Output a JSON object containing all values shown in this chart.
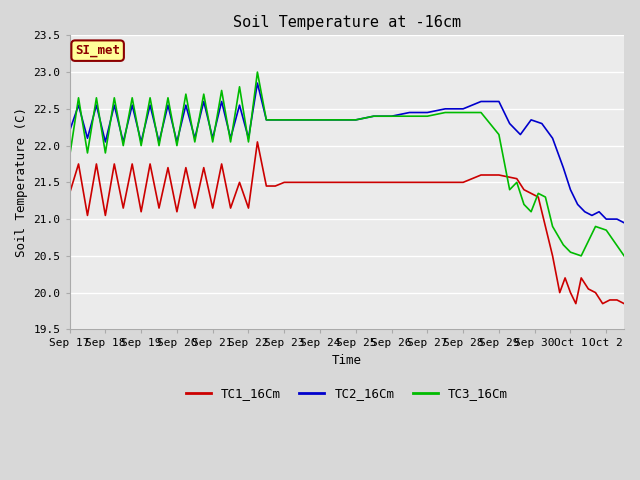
{
  "title": "Soil Temperature at -16cm",
  "xlabel": "Time",
  "ylabel": "Soil Temperature (C)",
  "ylim": [
    19.5,
    23.5
  ],
  "fig_bg_color": "#d8d8d8",
  "plot_bg_color": "#ebebeb",
  "annotation_text": "SI_met",
  "annotation_bg": "#ffff99",
  "annotation_border": "#8b0000",
  "series": {
    "TC1_16Cm": {
      "color": "#cc0000",
      "linewidth": 1.2
    },
    "TC2_16Cm": {
      "color": "#0000cc",
      "linewidth": 1.2
    },
    "TC3_16Cm": {
      "color": "#00bb00",
      "linewidth": 1.2
    }
  },
  "xtick_labels": [
    "Sep 17",
    "Sep 18",
    "Sep 19",
    "Sep 20",
    "Sep 21",
    "Sep 22",
    "Sep 23",
    "Sep 24",
    "Sep 25",
    "Sep 26",
    "Sep 27",
    "Sep 28",
    "Sep 29",
    "Sep 30",
    "Oct 1",
    "Oct 2"
  ],
  "ytick_labels": [
    "19.5",
    "20.0",
    "20.5",
    "21.0",
    "21.5",
    "22.0",
    "22.5",
    "23.0",
    "23.5"
  ],
  "grid_color": "#ffffff",
  "title_fontsize": 11,
  "axis_fontsize": 9,
  "tick_fontsize": 8,
  "legend_fontsize": 9,
  "tc1": {
    "x": [
      0.0,
      0.25,
      0.5,
      0.75,
      1.0,
      1.25,
      1.5,
      1.75,
      2.0,
      2.25,
      2.5,
      2.75,
      3.0,
      3.25,
      3.5,
      3.75,
      4.0,
      4.25,
      4.5,
      4.75,
      5.0,
      5.25,
      5.5,
      5.75,
      6.0,
      6.25,
      6.5,
      6.75,
      7.0,
      7.25,
      7.5,
      7.75,
      8.0,
      8.5,
      9.0,
      9.5,
      10.0,
      10.5,
      11.0,
      11.5,
      12.0,
      12.5,
      12.7,
      12.9,
      13.1,
      13.3,
      13.5,
      13.7,
      13.85,
      14.0,
      14.15,
      14.3,
      14.5,
      14.7,
      14.9,
      15.1,
      15.3,
      15.5
    ],
    "y": [
      21.35,
      21.75,
      21.05,
      21.75,
      21.05,
      21.75,
      21.15,
      21.75,
      21.1,
      21.75,
      21.15,
      21.7,
      21.1,
      21.7,
      21.15,
      21.7,
      21.15,
      21.75,
      21.15,
      21.5,
      21.15,
      22.05,
      21.45,
      21.45,
      21.5,
      21.5,
      21.5,
      21.5,
      21.5,
      21.5,
      21.5,
      21.5,
      21.5,
      21.5,
      21.5,
      21.5,
      21.5,
      21.5,
      21.5,
      21.6,
      21.6,
      21.55,
      21.4,
      21.35,
      21.3,
      20.9,
      20.5,
      20.0,
      20.2,
      20.0,
      19.85,
      20.2,
      20.05,
      20.0,
      19.85,
      19.9,
      19.9,
      19.85
    ]
  },
  "tc2": {
    "x": [
      0.0,
      0.25,
      0.5,
      0.75,
      1.0,
      1.25,
      1.5,
      1.75,
      2.0,
      2.25,
      2.5,
      2.75,
      3.0,
      3.25,
      3.5,
      3.75,
      4.0,
      4.25,
      4.5,
      4.75,
      5.0,
      5.25,
      5.5,
      5.75,
      6.0,
      6.5,
      7.0,
      7.5,
      8.0,
      8.5,
      9.0,
      9.5,
      10.0,
      10.5,
      11.0,
      11.5,
      12.0,
      12.3,
      12.6,
      12.9,
      13.2,
      13.5,
      13.8,
      14.0,
      14.2,
      14.4,
      14.6,
      14.8,
      15.0,
      15.3,
      15.5
    ],
    "y": [
      22.2,
      22.55,
      22.1,
      22.55,
      22.05,
      22.55,
      22.05,
      22.55,
      22.05,
      22.55,
      22.05,
      22.55,
      22.05,
      22.55,
      22.1,
      22.6,
      22.1,
      22.6,
      22.1,
      22.55,
      22.1,
      22.85,
      22.35,
      22.35,
      22.35,
      22.35,
      22.35,
      22.35,
      22.35,
      22.4,
      22.4,
      22.45,
      22.45,
      22.5,
      22.5,
      22.6,
      22.6,
      22.3,
      22.15,
      22.35,
      22.3,
      22.1,
      21.7,
      21.4,
      21.2,
      21.1,
      21.05,
      21.1,
      21.0,
      21.0,
      20.95
    ]
  },
  "tc3": {
    "x": [
      0.0,
      0.25,
      0.5,
      0.75,
      1.0,
      1.25,
      1.5,
      1.75,
      2.0,
      2.25,
      2.5,
      2.75,
      3.0,
      3.25,
      3.5,
      3.75,
      4.0,
      4.25,
      4.5,
      4.75,
      5.0,
      5.25,
      5.5,
      5.75,
      6.0,
      6.5,
      7.0,
      7.5,
      8.0,
      8.5,
      9.0,
      9.5,
      10.0,
      10.5,
      11.0,
      11.5,
      12.0,
      12.3,
      12.5,
      12.7,
      12.9,
      13.1,
      13.3,
      13.5,
      13.8,
      14.0,
      14.3,
      14.7,
      15.0,
      15.5
    ],
    "y": [
      21.85,
      22.65,
      21.9,
      22.65,
      21.9,
      22.65,
      22.0,
      22.65,
      22.0,
      22.65,
      22.0,
      22.65,
      22.0,
      22.7,
      22.05,
      22.7,
      22.05,
      22.75,
      22.05,
      22.8,
      22.05,
      23.0,
      22.35,
      22.35,
      22.35,
      22.35,
      22.35,
      22.35,
      22.35,
      22.4,
      22.4,
      22.4,
      22.4,
      22.45,
      22.45,
      22.45,
      22.15,
      21.4,
      21.5,
      21.2,
      21.1,
      21.35,
      21.3,
      20.9,
      20.65,
      20.55,
      20.5,
      20.9,
      20.85,
      20.5
    ]
  }
}
